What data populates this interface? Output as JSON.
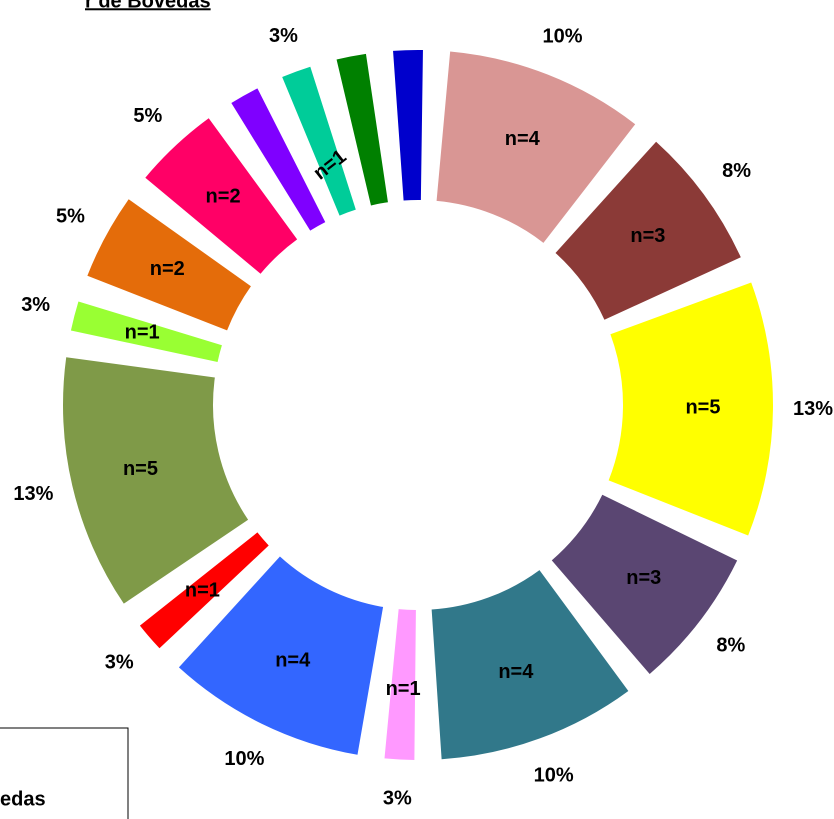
{
  "chart_data": {
    "type": "donut",
    "title": "r de Bovedas",
    "legend_text": "edas",
    "values": [
      4,
      3,
      5,
      3,
      4,
      1,
      4,
      1,
      5,
      1,
      2,
      2,
      1,
      1,
      1,
      1
    ],
    "value_labels": [
      "n=4",
      "n=3",
      "n=5",
      "n=3",
      "n=4",
      "n=1",
      "n=4",
      "n=1",
      "n=5",
      "n=1",
      "n=2",
      "n=2",
      null,
      "n=1",
      null,
      null
    ],
    "percents": [
      10,
      8,
      13,
      8,
      10,
      3,
      10,
      3,
      13,
      3,
      5,
      5,
      null,
      3,
      null,
      null
    ],
    "percent_labels": [
      "10%",
      "8%",
      "13%",
      "8%",
      "10%",
      "3%",
      "10%",
      "3%",
      "13%",
      "3%",
      "5%",
      "5%",
      null,
      "3%",
      null,
      null
    ],
    "colors": [
      "#d99694",
      "#8b3a37",
      "#ffff00",
      "#5a4672",
      "#31788a",
      "#ff99ff",
      "#3366ff",
      "#ff0000",
      "#7f9a48",
      "#99ff33",
      "#e46c0a",
      "#ff0066",
      "#7f00ff",
      "#00cc99",
      "#008000",
      "#0000cc"
    ]
  }
}
